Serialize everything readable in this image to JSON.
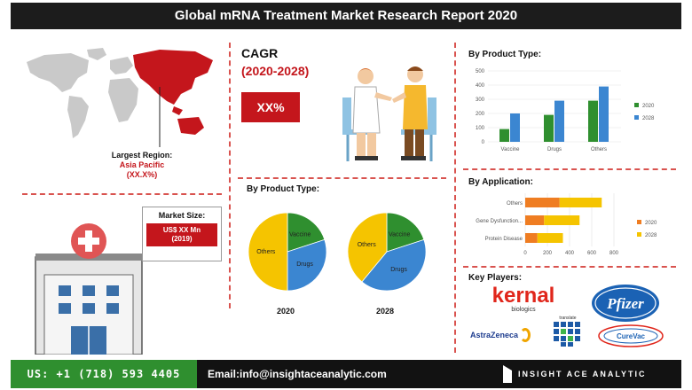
{
  "header": {
    "title": "Global mRNA Treatment Market Research Report 2020"
  },
  "region": {
    "label": "Largest Region:",
    "value": "Asia Pacific",
    "share": "(XX.X%)"
  },
  "cagr": {
    "label": "CAGR",
    "years": "(2020-2028)",
    "value": "XX%"
  },
  "market_size": {
    "label": "Market Size:",
    "value": "US$ XX Mn",
    "year": "(2019)"
  },
  "product_pies": {
    "title": "By Product Type:",
    "pie_2020_label": "2020",
    "pie_2028_label": "2028",
    "slice_labels": {
      "vaccine": "Vaccine",
      "others": "Others",
      "drugs": "Drugs"
    }
  },
  "colors": {
    "red": "#c4161c",
    "green": "#2f8f2f",
    "blue": "#3b86d1",
    "orange": "#ef7d22",
    "yellow": "#f5c400",
    "dark": "#1c1c1c"
  },
  "chart_data": [
    {
      "type": "bar",
      "title": "By Product Type:",
      "categories": [
        "Vaccine",
        "Drugs",
        "Others"
      ],
      "series": [
        {
          "name": "2020",
          "values": [
            90,
            190,
            290
          ]
        },
        {
          "name": "2028",
          "values": [
            200,
            290,
            390
          ]
        }
      ],
      "ylim": [
        0,
        500
      ],
      "yticks": [
        0,
        100,
        200,
        300,
        400,
        500
      ],
      "legend": "right"
    },
    {
      "type": "bar",
      "orientation": "horizontal",
      "title": "By Application:",
      "categories": [
        "Others",
        "Gene Dysfunction...",
        "Protein Disease"
      ],
      "series": [
        {
          "name": "2020",
          "values": [
            310,
            170,
            110
          ]
        },
        {
          "name": "2028",
          "values": [
            690,
            490,
            340
          ]
        }
      ],
      "xlim": [
        0,
        800
      ],
      "xticks": [
        0,
        200,
        400,
        600,
        800
      ],
      "legend": "right"
    },
    {
      "type": "pie",
      "title": "2020",
      "labels": [
        "Vaccine",
        "Drugs",
        "Others"
      ],
      "values": [
        20,
        30,
        50
      ]
    },
    {
      "type": "pie",
      "title": "2028",
      "labels": [
        "Vaccine",
        "Drugs",
        "Others"
      ],
      "values": [
        20,
        41,
        39
      ]
    }
  ],
  "key_players": {
    "title": "Key Players:",
    "kernal": "kernal",
    "kernal_sub": "biologics",
    "pfizer": "Pfizer",
    "astrazeneca": "AstraZeneca",
    "translate": "translate",
    "curevac": "CureVac"
  },
  "footer": {
    "phone": "US: +1 (718) 593 4405",
    "email": "Email:info@insightaceanalytic.com",
    "brand": "INSIGHT ACE ANALYTIC"
  }
}
